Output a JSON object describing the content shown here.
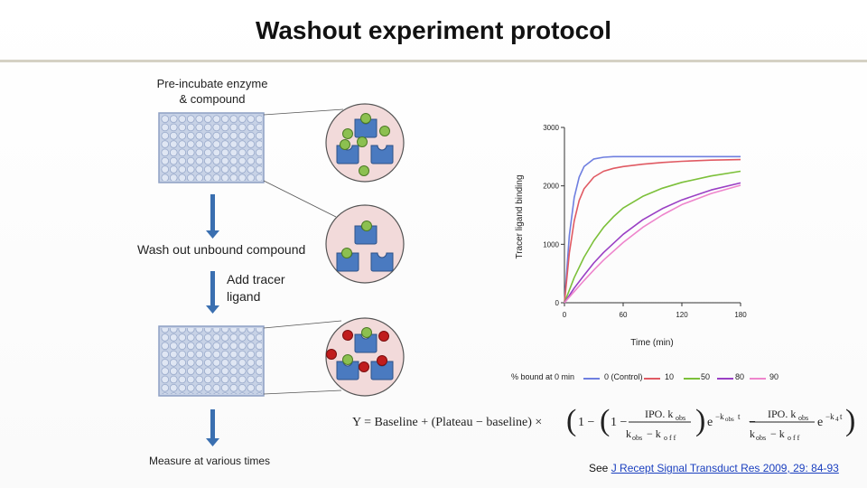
{
  "title": "Washout experiment protocol",
  "steps": {
    "preincubate_line1": "Pre-incubate enzyme",
    "preincubate_line2": "& compound",
    "washout": "Wash out unbound compound",
    "add_tracer_line1": "Add tracer",
    "add_tracer_line2": "ligand",
    "measure": "Measure at various times"
  },
  "chart_data": {
    "type": "line",
    "ylabel": "Tracer ligand binding",
    "xlabel": "Time (min)",
    "x_ticks": [
      "0",
      "60",
      "120",
      "180"
    ],
    "y_ticks": [
      "0",
      "1000",
      "2000",
      "3000"
    ],
    "xlim": [
      0,
      180
    ],
    "ylim": [
      0,
      3000
    ],
    "legend_title": "% bound at 0 min",
    "series": [
      {
        "name": "0 (Control)",
        "color": "#6f7fe0",
        "x": [
          0,
          5,
          10,
          15,
          20,
          30,
          40,
          50,
          60,
          80,
          100,
          120,
          150,
          180
        ],
        "y": [
          0,
          1150,
          1800,
          2150,
          2330,
          2460,
          2490,
          2500,
          2500,
          2500,
          2500,
          2500,
          2500,
          2500
        ]
      },
      {
        "name": "10",
        "color": "#e05a63",
        "x": [
          0,
          5,
          10,
          15,
          20,
          30,
          40,
          50,
          60,
          80,
          100,
          120,
          150,
          180
        ],
        "y": [
          0,
          850,
          1400,
          1750,
          1950,
          2150,
          2250,
          2300,
          2330,
          2370,
          2400,
          2420,
          2440,
          2450
        ]
      },
      {
        "name": "50",
        "color": "#7cc03a",
        "x": [
          0,
          10,
          20,
          30,
          40,
          50,
          60,
          80,
          100,
          120,
          150,
          180
        ],
        "y": [
          0,
          430,
          780,
          1060,
          1290,
          1470,
          1620,
          1820,
          1960,
          2060,
          2170,
          2250
        ]
      },
      {
        "name": "80",
        "color": "#9a3fc4",
        "x": [
          0,
          10,
          20,
          30,
          40,
          60,
          80,
          100,
          120,
          150,
          180
        ],
        "y": [
          0,
          250,
          470,
          680,
          860,
          1170,
          1420,
          1610,
          1760,
          1930,
          2050
        ]
      },
      {
        "name": "90",
        "color": "#ee85cc",
        "x": [
          0,
          10,
          20,
          30,
          40,
          60,
          80,
          100,
          120,
          150,
          180
        ],
        "y": [
          0,
          190,
          380,
          560,
          730,
          1030,
          1290,
          1500,
          1680,
          1870,
          2010
        ]
      }
    ]
  },
  "colors": {
    "enzyme": "#4a7ac0",
    "compound": "#8cc050",
    "tracer": "#c01d1d",
    "circle_fill": "#f2dada",
    "plate_fill": "#c7d2e6",
    "arrow": "#3a6fb0"
  },
  "reference": {
    "prefix": "See ",
    "link": "J Recept Signal Transduct Res 2009, 29: 84-93"
  },
  "formula_text": "Y = Baseline + (Plateau − baseline) × (1 − (1 − IPO. kobs/(kobs − koff)) e^(−kobs t) − IPO. kobs/(kobs − koff) e^(−k4 t))"
}
